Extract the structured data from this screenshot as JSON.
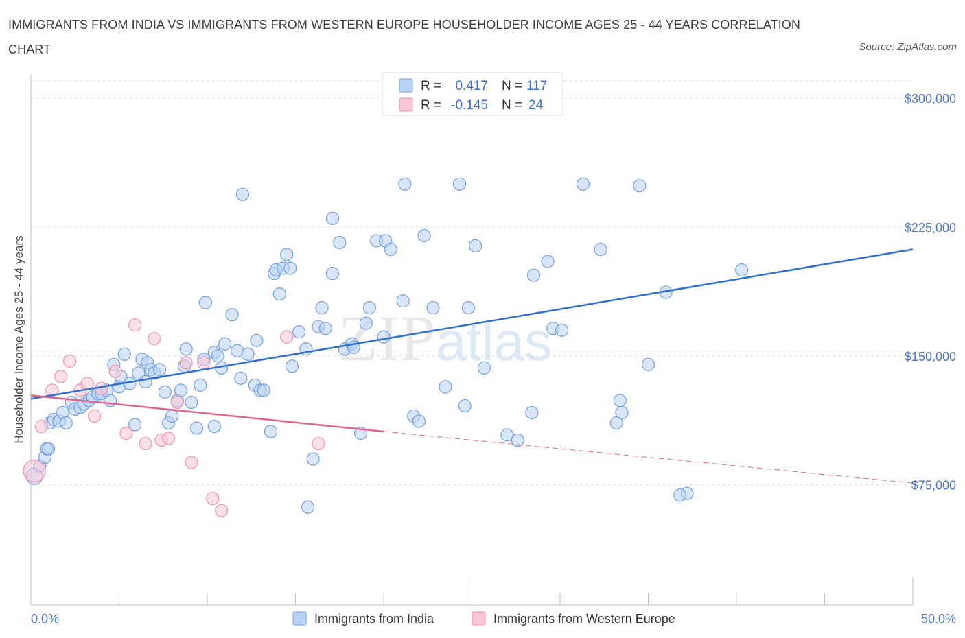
{
  "header": {
    "title": "IMMIGRANTS FROM INDIA VS IMMIGRANTS FROM WESTERN EUROPE HOUSEHOLDER INCOME AGES 25 - 44 YEARS CORRELATION CHART",
    "source": "Source: ZipAtlas.com"
  },
  "watermark": {
    "zip": "ZIP",
    "atlas": "atlas"
  },
  "legend_top": {
    "rows": [
      {
        "r_label": "R =",
        "r_value": "0.417",
        "n_label": "N =",
        "n_value": "117",
        "color": "#a9c7f2"
      },
      {
        "r_label": "R =",
        "r_value": "-0.145",
        "n_label": "N =",
        "n_value": "24",
        "color": "#f5b9cb"
      }
    ]
  },
  "legend_bottom": {
    "items": [
      {
        "label": "Immigrants from India",
        "color": "#a9c7f2"
      },
      {
        "label": "Immigrants from Western Europe",
        "color": "#f5b9cb"
      }
    ]
  },
  "chart_data": {
    "type": "scatter",
    "xlabel": "",
    "ylabel": "Householder Income Ages 25 - 44 years",
    "xlim": [
      0,
      50
    ],
    "ylim": [
      5000,
      310000
    ],
    "x_tick_labels": [
      "0.0%",
      "50.0%"
    ],
    "y_ticks": [
      75000,
      150000,
      225000,
      300000
    ],
    "y_tick_labels": [
      "$75,000",
      "$150,000",
      "$225,000",
      "$300,000"
    ],
    "grid": true,
    "legend_placement": "top-center",
    "colors": {
      "india": "#6f9fe0",
      "india_fill": "#b9d1f4",
      "india_line": "#2f6fd1",
      "weurope": "#ee92ad",
      "weurope_fill": "#f8c6d5",
      "weurope_line": "#e0648f"
    },
    "series": [
      {
        "name": "Immigrants from India",
        "trend": {
          "x": [
            0,
            50
          ],
          "y": [
            125000,
            212000
          ]
        },
        "points": [
          [
            0.2,
            80000
          ],
          [
            0.5,
            86000
          ],
          [
            0.8,
            91000
          ],
          [
            0.9,
            96000
          ],
          [
            1.0,
            96000
          ],
          [
            1.1,
            111000
          ],
          [
            1.3,
            113000
          ],
          [
            1.6,
            112000
          ],
          [
            1.8,
            117000
          ],
          [
            2.0,
            111000
          ],
          [
            2.3,
            123000
          ],
          [
            2.5,
            119000
          ],
          [
            2.8,
            120000
          ],
          [
            3.0,
            122000
          ],
          [
            3.3,
            124000
          ],
          [
            3.5,
            126000
          ],
          [
            3.8,
            128000
          ],
          [
            4.0,
            128000
          ],
          [
            4.3,
            130000
          ],
          [
            4.5,
            124000
          ],
          [
            4.7,
            145000
          ],
          [
            5.0,
            132000
          ],
          [
            5.1,
            138000
          ],
          [
            5.3,
            151000
          ],
          [
            5.6,
            134000
          ],
          [
            5.9,
            110000
          ],
          [
            6.1,
            140000
          ],
          [
            6.3,
            148000
          ],
          [
            6.5,
            135000
          ],
          [
            6.6,
            146000
          ],
          [
            6.8,
            142000
          ],
          [
            7.0,
            140000
          ],
          [
            7.3,
            142000
          ],
          [
            7.6,
            129000
          ],
          [
            7.8,
            111000
          ],
          [
            8.0,
            115000
          ],
          [
            8.3,
            124000
          ],
          [
            8.5,
            130000
          ],
          [
            8.7,
            144000
          ],
          [
            8.8,
            154000
          ],
          [
            9.1,
            123000
          ],
          [
            9.4,
            108000
          ],
          [
            9.6,
            133000
          ],
          [
            9.8,
            148000
          ],
          [
            9.9,
            181000
          ],
          [
            10.4,
            152000
          ],
          [
            10.4,
            109000
          ],
          [
            10.6,
            150000
          ],
          [
            10.8,
            143000
          ],
          [
            11.0,
            157000
          ],
          [
            11.4,
            174000
          ],
          [
            11.7,
            153000
          ],
          [
            11.9,
            137000
          ],
          [
            12.0,
            244000
          ],
          [
            12.3,
            151000
          ],
          [
            12.7,
            133000
          ],
          [
            12.8,
            159000
          ],
          [
            13.0,
            130000
          ],
          [
            13.2,
            130000
          ],
          [
            13.6,
            106000
          ],
          [
            13.8,
            198000
          ],
          [
            13.9,
            200000
          ],
          [
            14.1,
            186000
          ],
          [
            14.3,
            201000
          ],
          [
            14.5,
            209000
          ],
          [
            14.7,
            201000
          ],
          [
            14.8,
            144000
          ],
          [
            15.2,
            164000
          ],
          [
            15.6,
            154000
          ],
          [
            16.0,
            90000
          ],
          [
            16.3,
            167000
          ],
          [
            16.5,
            178000
          ],
          [
            16.7,
            166000
          ],
          [
            17.1,
            198000
          ],
          [
            17.1,
            230000
          ],
          [
            17.5,
            216000
          ],
          [
            17.8,
            154000
          ],
          [
            18.2,
            157000
          ],
          [
            18.3,
            155000
          ],
          [
            18.7,
            105000
          ],
          [
            19.0,
            169000
          ],
          [
            19.2,
            178000
          ],
          [
            19.6,
            217000
          ],
          [
            20.0,
            161000
          ],
          [
            20.1,
            217000
          ],
          [
            20.4,
            212000
          ],
          [
            21.1,
            182000
          ],
          [
            21.2,
            250000
          ],
          [
            21.7,
            115000
          ],
          [
            22.0,
            112000
          ],
          [
            22.3,
            220000
          ],
          [
            22.8,
            178000
          ],
          [
            23.5,
            132000
          ],
          [
            24.3,
            250000
          ],
          [
            24.6,
            121000
          ],
          [
            24.8,
            178000
          ],
          [
            25.2,
            214000
          ],
          [
            25.7,
            143000
          ],
          [
            27.0,
            104000
          ],
          [
            27.6,
            101000
          ],
          [
            28.4,
            117000
          ],
          [
            28.5,
            197000
          ],
          [
            29.3,
            205000
          ],
          [
            29.6,
            166000
          ],
          [
            30.1,
            165000
          ],
          [
            31.3,
            250000
          ],
          [
            32.3,
            212000
          ],
          [
            33.2,
            111000
          ],
          [
            33.4,
            124000
          ],
          [
            33.5,
            117000
          ],
          [
            34.5,
            249000
          ],
          [
            35.0,
            145000
          ],
          [
            36.0,
            187000
          ],
          [
            37.2,
            70000
          ],
          [
            40.3,
            200000
          ],
          [
            15.7,
            62000
          ],
          [
            36.8,
            69000
          ]
        ]
      },
      {
        "name": "Immigrants from Western Europe",
        "trend": {
          "x": [
            0,
            20
          ],
          "y": [
            127000,
            106000
          ],
          "dashed_to": [
            50,
            76000
          ]
        },
        "points": [
          [
            0.2,
            83000
          ],
          [
            0.6,
            109000
          ],
          [
            1.2,
            130000
          ],
          [
            1.7,
            138000
          ],
          [
            2.2,
            147000
          ],
          [
            2.8,
            130000
          ],
          [
            3.2,
            134000
          ],
          [
            3.6,
            115000
          ],
          [
            4.0,
            131000
          ],
          [
            4.8,
            141000
          ],
          [
            5.4,
            105000
          ],
          [
            5.9,
            168000
          ],
          [
            6.5,
            99000
          ],
          [
            7.0,
            160000
          ],
          [
            7.4,
            101000
          ],
          [
            7.8,
            102000
          ],
          [
            8.3,
            123000
          ],
          [
            8.8,
            146000
          ],
          [
            9.1,
            88000
          ],
          [
            9.8,
            146000
          ],
          [
            10.3,
            67000
          ],
          [
            10.8,
            60000
          ],
          [
            14.5,
            161000
          ],
          [
            16.3,
            99000
          ]
        ]
      }
    ]
  }
}
